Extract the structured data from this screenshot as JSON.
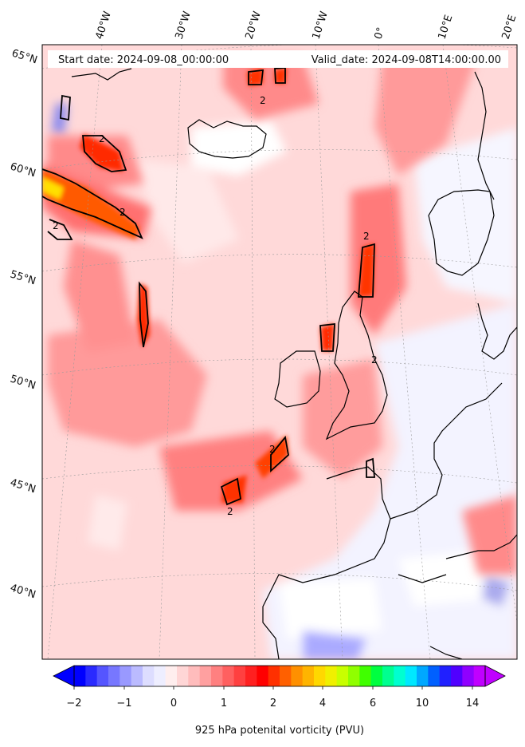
{
  "header": {
    "start_label": "Start date: 2024-09-08_00:00:00",
    "valid_label": "Valid_date: 2024-09-08T14:00:00.00"
  },
  "axes": {
    "lat_labels": [
      "65°N",
      "60°N",
      "55°N",
      "50°N",
      "45°N",
      "40°N"
    ],
    "lon_labels": [
      "40°W",
      "30°W",
      "20°W",
      "10°W",
      "0°",
      "10°E",
      "20°E"
    ]
  },
  "contour_label": "2",
  "colorbar": {
    "title": "925 hPa potenital vorticity (PVU)",
    "tick_labels": [
      "−2",
      "−1",
      "0",
      "1",
      "2",
      "4",
      "6",
      "10",
      "14"
    ],
    "colors": [
      "#0000ff",
      "#2a2aff",
      "#5555ff",
      "#7777ff",
      "#9999ff",
      "#bbbbff",
      "#ddddff",
      "#eeeeff",
      "#ffeeee",
      "#ffd6d6",
      "#ffbcbc",
      "#ffa0a0",
      "#ff8080",
      "#ff6060",
      "#ff4040",
      "#ff2020",
      "#ff0000",
      "#ff3000",
      "#ff6000",
      "#ff9000",
      "#ffb400",
      "#ffd800",
      "#f0f000",
      "#c8ff00",
      "#90ff00",
      "#40ff00",
      "#00ff40",
      "#00ff90",
      "#00ffd0",
      "#00e8ff",
      "#00a8ff",
      "#0060ff",
      "#2020ff",
      "#5000ff",
      "#9000ff",
      "#c000ff"
    ],
    "extend": "both"
  },
  "colors": {
    "coastline": "#000000",
    "contour": "#000000"
  }
}
